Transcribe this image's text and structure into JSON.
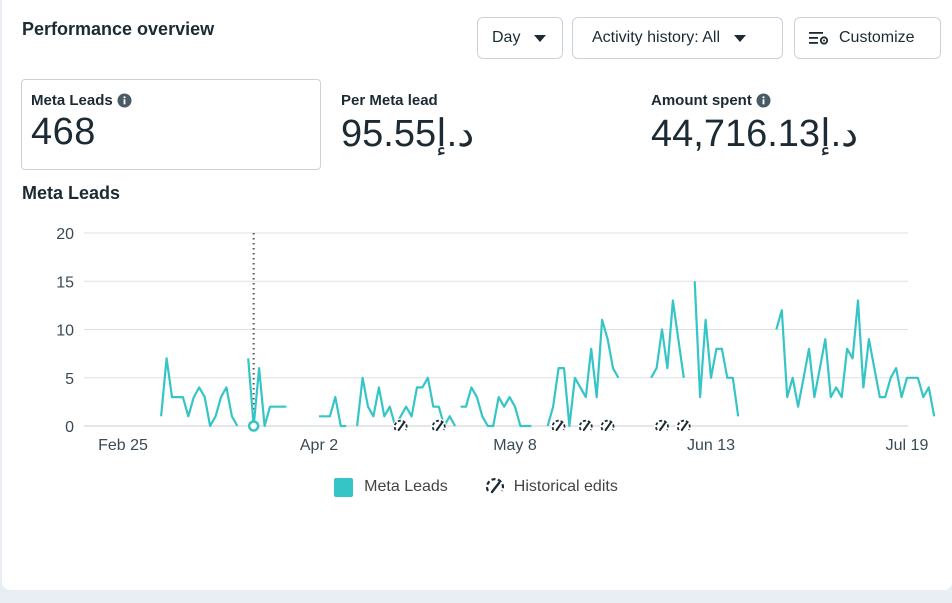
{
  "header": {
    "title": "Performance overview",
    "day_button": "Day",
    "activity_button": "Activity history: All",
    "customize_button": "Customize"
  },
  "metrics": [
    {
      "label": "Meta Leads",
      "value": "468",
      "has_info": true
    },
    {
      "label": "Per Meta lead",
      "value": "95.55د.إ",
      "has_info": false
    },
    {
      "label": "Amount spent",
      "value": "44,716.13د.إ",
      "has_info": true
    }
  ],
  "chart_section": {
    "title": "Meta Leads"
  },
  "chart_data": {
    "type": "line",
    "title": "Meta Leads",
    "ylim": [
      0,
      20
    ],
    "yticks": [
      0,
      5,
      10,
      15,
      20
    ],
    "xtick_labels": [
      "Feb 25",
      "Apr 2",
      "May 8",
      "Jun 13",
      "Jul 19"
    ],
    "xtick_days": [
      0,
      36,
      72,
      108,
      144
    ],
    "series": [
      {
        "name": "Meta Leads",
        "color": "#36c5c6",
        "segments": [
          {
            "start_day": 7,
            "values": [
              1,
              7,
              3,
              3,
              3,
              1,
              3,
              4,
              3,
              0,
              1,
              3,
              4,
              1,
              0
            ]
          },
          {
            "start_day": 23,
            "values": [
              7,
              0,
              6,
              0,
              2,
              2,
              2,
              2
            ]
          },
          {
            "start_day": 36,
            "values": [
              1,
              1,
              1,
              3,
              0,
              0
            ]
          },
          {
            "start_day": 43,
            "values": [
              0,
              5,
              2,
              1,
              4,
              1,
              2,
              0,
              1,
              2,
              1,
              4,
              4,
              5,
              2,
              2,
              0,
              1,
              0
            ]
          },
          {
            "start_day": 62,
            "values": [
              2,
              2,
              4,
              3,
              1,
              0,
              0,
              3,
              2,
              3,
              2,
              0,
              0,
              0
            ]
          },
          {
            "start_day": 78,
            "values": [
              0,
              2,
              6,
              6,
              0,
              5,
              4,
              3,
              8,
              3,
              11,
              9,
              6,
              5
            ]
          },
          {
            "start_day": 97,
            "values": [
              5,
              6,
              10,
              6,
              13,
              9,
              5
            ]
          },
          {
            "start_day": 105,
            "values": [
              15,
              3,
              11,
              5,
              8,
              8,
              5,
              5,
              1
            ]
          },
          {
            "start_day": 120,
            "values": [
              10,
              12,
              3,
              5,
              2,
              5,
              8,
              3,
              6,
              9,
              3,
              4,
              3,
              8,
              7,
              13,
              4,
              9,
              6,
              3,
              3,
              5,
              6,
              3,
              5,
              5,
              5,
              3,
              4,
              1
            ]
          }
        ]
      }
    ],
    "historical_edit_days": [
      51,
      58,
      80,
      85,
      89,
      99,
      103
    ],
    "marker_day": 24,
    "grid": true,
    "legend": "bottom-center",
    "legend_entries": [
      "Meta Leads",
      "Historical edits"
    ]
  },
  "legend": {
    "leads_label": "Meta Leads",
    "edits_label": "Historical edits"
  }
}
